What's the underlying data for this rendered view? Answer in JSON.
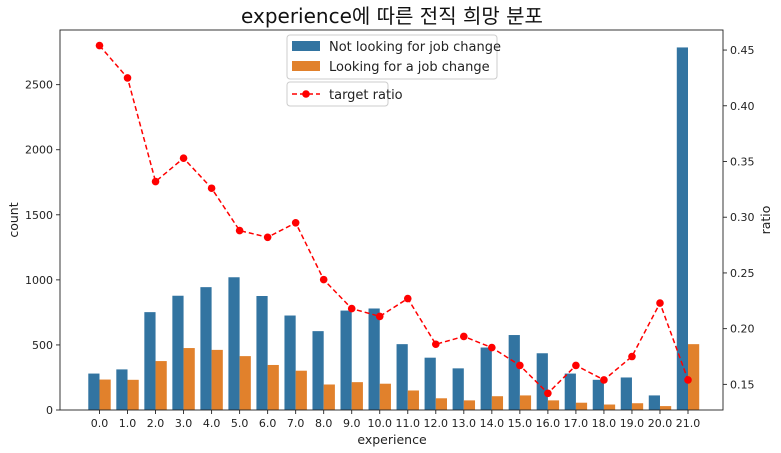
{
  "chart_data": {
    "type": "bar",
    "title": "experience에 따른 전직 희망 분포",
    "xlabel": "experience",
    "ylabel": "count",
    "y2label": "ratio",
    "categories": [
      "0.0",
      "1.0",
      "2.0",
      "3.0",
      "4.0",
      "5.0",
      "6.0",
      "7.0",
      "8.0",
      "9.0",
      "10.0",
      "11.0",
      "12.0",
      "13.0",
      "14.0",
      "15.0",
      "16.0",
      "17.0",
      "18.0",
      "19.0",
      "20.0",
      "21.0"
    ],
    "series": [
      {
        "name": "Not looking for job change",
        "color": "#3274a1",
        "values": [
          280,
          312,
          752,
          878,
          944,
          1020,
          876,
          726,
          606,
          764,
          780,
          506,
          402,
          320,
          480,
          576,
          436,
          280,
          232,
          250,
          112,
          2786
        ]
      },
      {
        "name": "Looking for a job change",
        "color": "#e1812c",
        "values": [
          234,
          232,
          376,
          476,
          462,
          414,
          346,
          302,
          196,
          214,
          202,
          150,
          90,
          74,
          106,
          112,
          74,
          56,
          42,
          52,
          30,
          506
        ]
      }
    ],
    "line_series": {
      "name": "target ratio",
      "color": "#ff0000",
      "style": "dashed",
      "marker": "circle",
      "values": [
        0.454,
        0.425,
        0.332,
        0.353,
        0.326,
        0.288,
        0.282,
        0.295,
        0.244,
        0.218,
        0.211,
        0.227,
        0.186,
        0.193,
        0.183,
        0.167,
        0.142,
        0.167,
        0.154,
        0.175,
        0.223,
        0.154
      ]
    },
    "ylim": [
      0,
      2920
    ],
    "y_ticks": [
      0,
      500,
      1000,
      1500,
      2000,
      2500
    ],
    "y2lim": [
      0.127,
      0.468
    ],
    "y2_ticks": [
      0.15,
      0.2,
      0.25,
      0.3,
      0.35,
      0.4,
      0.45
    ],
    "legend_placement": "upper-center"
  }
}
